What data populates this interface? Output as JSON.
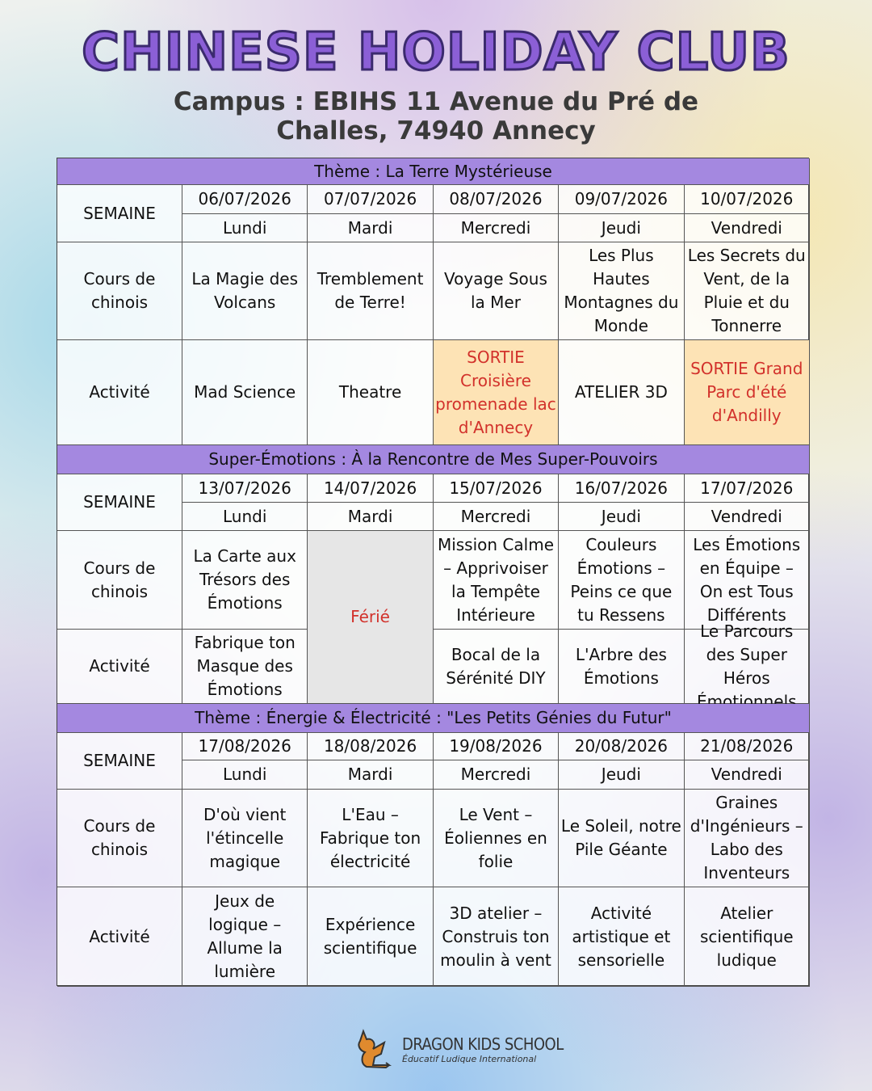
{
  "header": {
    "title": "CHINESE HOLIDAY CLUB",
    "campus_line1": "Campus : EBIHS 11 Avenue du Pré de",
    "campus_line2": "Challes, 74940 Annecy"
  },
  "colors": {
    "theme_bar": "#a488e0",
    "outing_bg": "#fde3b5",
    "outing_text": "#d2312b",
    "holiday_bg": "#e6e6e6"
  },
  "labels": {
    "week": "SEMAINE",
    "course": "Cours de chinois",
    "activity": "Activité"
  },
  "weeks": [
    {
      "theme": "Thème : La Terre Mystérieuse",
      "dates": [
        "06/07/2026",
        "07/07/2026",
        "08/07/2026",
        "09/07/2026",
        "10/07/2026"
      ],
      "days": [
        "Lundi",
        "Mardi",
        "Mercredi",
        "Jeudi",
        "Vendredi"
      ],
      "courses": [
        "La Magie des Volcans",
        "Tremblement de Terre!",
        "Voyage Sous la Mer",
        "Les Plus Hautes Montagnes du Monde",
        "Les Secrets du Vent, de la Pluie et du Tonnerre"
      ],
      "activities": [
        {
          "text": "Mad Science"
        },
        {
          "text": "Theatre"
        },
        {
          "text": "SORTIE Croisière promenade lac d'Annecy",
          "outing": true
        },
        {
          "text": "ATELIER 3D"
        },
        {
          "text": "SORTIE Grand Parc d'été d'Andilly",
          "outing": true
        }
      ]
    },
    {
      "theme": "Super-Émotions : À la Rencontre de Mes Super-Pouvoirs",
      "dates": [
        "13/07/2026",
        "14/07/2026",
        "15/07/2026",
        "16/07/2026",
        "17/07/2026"
      ],
      "days": [
        "Lundi",
        "Mardi",
        "Mercredi",
        "Jeudi",
        "Vendredi"
      ],
      "holiday": {
        "index": 1,
        "text": "Férié"
      },
      "courses": [
        "La Carte aux Trésors des Émotions",
        "",
        "Mission Calme – Apprivoiser la Tempête Intérieure",
        "Couleurs Émotions – Peins ce que tu Ressens",
        "Les Émotions en Équipe – On est Tous Différents"
      ],
      "activities": [
        {
          "text": "Fabrique ton Masque des Émotions"
        },
        {
          "text": ""
        },
        {
          "text": "Bocal de la Sérénité DIY"
        },
        {
          "text": "L'Arbre des Émotions"
        },
        {
          "text": "Le Parcours des Super Héros Émotionnels"
        }
      ]
    },
    {
      "theme": "Thème : Énergie & Électricité : \"Les Petits Génies du Futur\"",
      "dates": [
        "17/08/2026",
        "18/08/2026",
        "19/08/2026",
        "20/08/2026",
        "21/08/2026"
      ],
      "days": [
        "Lundi",
        "Mardi",
        "Mercredi",
        "Jeudi",
        "Vendredi"
      ],
      "courses": [
        "D'où vient l'étincelle magique",
        "L'Eau – Fabrique ton électricité",
        "Le Vent – Éoliennes en folie",
        "Le Soleil, notre Pile Géante",
        "Graines d'Ingénieurs – Labo des Inventeurs"
      ],
      "activities": [
        {
          "text": "Jeux de logique – Allume la lumière"
        },
        {
          "text": "Expérience scientifique"
        },
        {
          "text": "3D atelier – Construis ton moulin à vent"
        },
        {
          "text": "Activité artistique et sensorielle"
        },
        {
          "text": "Atelier scientifique ludique"
        }
      ]
    }
  ],
  "footer": {
    "brand": "DRAGON KIDS SCHOOL",
    "tagline": "Éducatif Ludique International"
  }
}
